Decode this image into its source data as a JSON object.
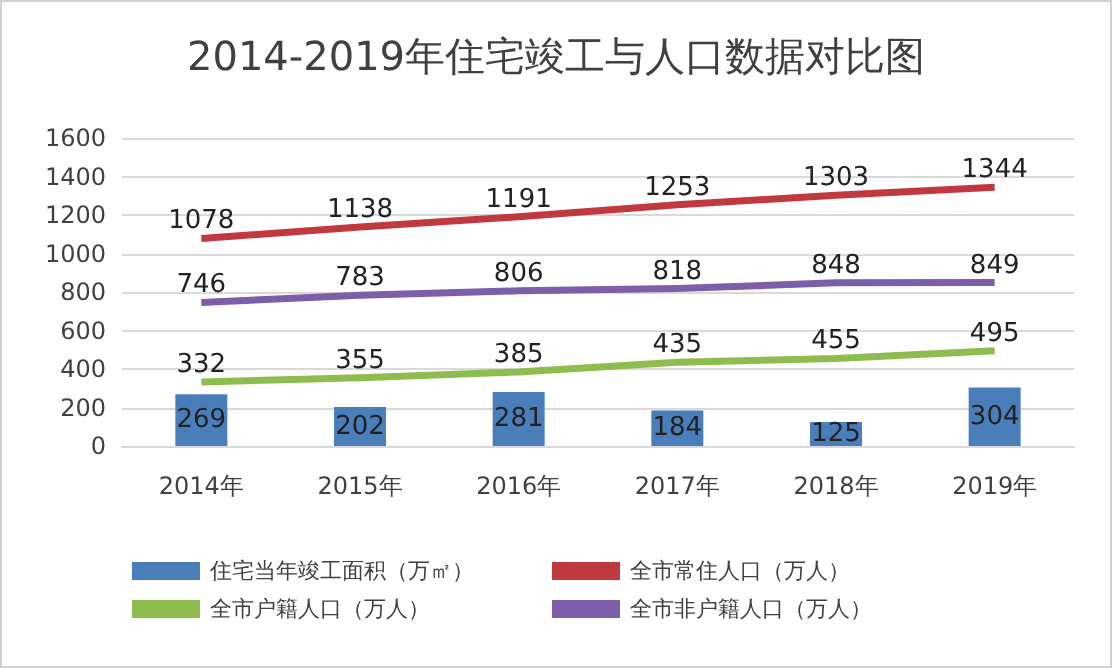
{
  "chart_data": {
    "type": "bar",
    "title": "2014-2019年住宅竣工与人口数据对比图",
    "categories": [
      "2014年",
      "2015年",
      "2016年",
      "2017年",
      "2018年",
      "2019年"
    ],
    "series": [
      {
        "name": "住宅当年竣工面积（万㎡）",
        "color": "#4a7ebb",
        "values": [
          269,
          202,
          281,
          184,
          125,
          304
        ]
      },
      {
        "name": "全市常住人口（万人）",
        "type": "line",
        "color": "#c0393f",
        "values": [
          1078,
          1138,
          1191,
          1253,
          1303,
          1344
        ]
      },
      {
        "name": "全市户籍人口（万人）",
        "type": "line",
        "color": "#8fbc4f",
        "values": [
          332,
          355,
          385,
          435,
          455,
          495
        ]
      },
      {
        "name": "全市非户籍人口（万人）",
        "type": "line",
        "color": "#7d5ea8",
        "values": [
          746,
          783,
          806,
          818,
          848,
          849
        ]
      }
    ],
    "ylim": [
      0,
      1600
    ],
    "yticks": [
      0,
      200,
      400,
      600,
      800,
      1000,
      1200,
      1400,
      1600
    ],
    "grid": "y",
    "legend": "bottom",
    "data_labels": true,
    "marker": "none",
    "line_style": "solid"
  }
}
